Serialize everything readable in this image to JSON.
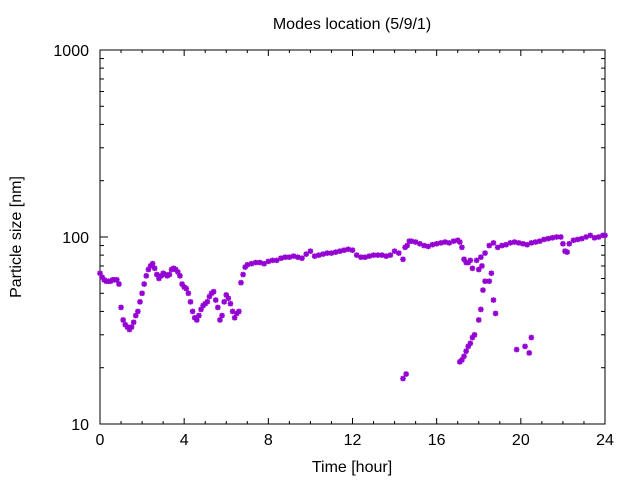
{
  "chart_data": {
    "type": "scatter",
    "title": "Modes location (5/9/1)",
    "xlabel": "Time [hour]",
    "ylabel": "Particle size [nm]",
    "xlim": [
      0,
      24
    ],
    "ylim": [
      10,
      1000
    ],
    "y_scale": "log",
    "x_ticks": [
      "0",
      "4",
      "8",
      "12",
      "16",
      "20",
      "24"
    ],
    "y_ticks": [
      "10",
      "100",
      "1000"
    ],
    "grid": false,
    "legend": "none",
    "marker_color": "#9400d3",
    "series": [
      {
        "points": [
          [
            0.0,
            64
          ],
          [
            0.1,
            61
          ],
          [
            0.2,
            59
          ],
          [
            0.3,
            58
          ],
          [
            0.4,
            58
          ],
          [
            0.5,
            58
          ],
          [
            0.6,
            59
          ],
          [
            0.7,
            59
          ],
          [
            0.8,
            59
          ],
          [
            0.9,
            56
          ],
          [
            1.0,
            42
          ],
          [
            1.1,
            36
          ],
          [
            1.2,
            34
          ],
          [
            1.3,
            33
          ],
          [
            1.4,
            32
          ],
          [
            1.5,
            33
          ],
          [
            1.6,
            35
          ],
          [
            1.7,
            38
          ],
          [
            1.8,
            40
          ],
          [
            1.9,
            45
          ],
          [
            2.0,
            50
          ],
          [
            2.1,
            56
          ],
          [
            2.2,
            62
          ],
          [
            2.3,
            67
          ],
          [
            2.4,
            70
          ],
          [
            2.5,
            72
          ],
          [
            2.6,
            68
          ],
          [
            2.7,
            63
          ],
          [
            2.8,
            60
          ],
          [
            2.9,
            62
          ],
          [
            3.0,
            64
          ],
          [
            3.1,
            63
          ],
          [
            3.2,
            62
          ],
          [
            3.3,
            63
          ],
          [
            3.4,
            67
          ],
          [
            3.5,
            68
          ],
          [
            3.6,
            67
          ],
          [
            3.7,
            65
          ],
          [
            3.8,
            62
          ],
          [
            3.9,
            56
          ],
          [
            4.0,
            54
          ],
          [
            4.1,
            53
          ],
          [
            4.2,
            50
          ],
          [
            4.3,
            45
          ],
          [
            4.4,
            40
          ],
          [
            4.5,
            37
          ],
          [
            4.6,
            36
          ],
          [
            4.7,
            38
          ],
          [
            4.8,
            41
          ],
          [
            4.9,
            43
          ],
          [
            5.0,
            44
          ],
          [
            5.1,
            45
          ],
          [
            5.2,
            48
          ],
          [
            5.3,
            50
          ],
          [
            5.4,
            51
          ],
          [
            5.5,
            46
          ],
          [
            5.6,
            42
          ],
          [
            5.7,
            36
          ],
          [
            5.8,
            38
          ],
          [
            5.9,
            45
          ],
          [
            6.0,
            49
          ],
          [
            6.1,
            47
          ],
          [
            6.2,
            44
          ],
          [
            6.3,
            40
          ],
          [
            6.4,
            37
          ],
          [
            6.5,
            39
          ],
          [
            6.6,
            40
          ],
          [
            6.7,
            57
          ],
          [
            6.8,
            63
          ],
          [
            6.9,
            69
          ],
          [
            7.0,
            71
          ],
          [
            7.2,
            72
          ],
          [
            7.4,
            73
          ],
          [
            7.6,
            73
          ],
          [
            7.8,
            72
          ],
          [
            8.0,
            74
          ],
          [
            8.2,
            75
          ],
          [
            8.4,
            75
          ],
          [
            8.6,
            77
          ],
          [
            8.8,
            78
          ],
          [
            9.0,
            78
          ],
          [
            9.2,
            79
          ],
          [
            9.4,
            78
          ],
          [
            9.6,
            77
          ],
          [
            9.8,
            81
          ],
          [
            10.0,
            84
          ],
          [
            10.2,
            79
          ],
          [
            10.4,
            80
          ],
          [
            10.6,
            81
          ],
          [
            10.8,
            82
          ],
          [
            11.0,
            82
          ],
          [
            11.2,
            83
          ],
          [
            11.4,
            84
          ],
          [
            11.6,
            85
          ],
          [
            11.8,
            86
          ],
          [
            12.0,
            85
          ],
          [
            12.2,
            80
          ],
          [
            12.4,
            78
          ],
          [
            12.6,
            78
          ],
          [
            12.8,
            79
          ],
          [
            13.0,
            80
          ],
          [
            13.2,
            80
          ],
          [
            13.4,
            80
          ],
          [
            13.6,
            79
          ],
          [
            13.8,
            80
          ],
          [
            14.0,
            84
          ],
          [
            14.2,
            82
          ],
          [
            14.4,
            76
          ],
          [
            14.5,
            88
          ],
          [
            14.6,
            90
          ],
          [
            14.7,
            95
          ],
          [
            14.8,
            95
          ],
          [
            15.0,
            94
          ],
          [
            15.2,
            92
          ],
          [
            15.4,
            90
          ],
          [
            15.6,
            89
          ],
          [
            15.8,
            91
          ],
          [
            16.0,
            92
          ],
          [
            16.2,
            93
          ],
          [
            16.4,
            94
          ],
          [
            16.6,
            93
          ],
          [
            16.8,
            95
          ],
          [
            17.0,
            96
          ],
          [
            17.1,
            94
          ],
          [
            17.2,
            88
          ],
          [
            17.3,
            76
          ],
          [
            17.4,
            73
          ],
          [
            17.5,
            73
          ],
          [
            17.6,
            75
          ],
          [
            17.7,
            68
          ],
          [
            17.9,
            75
          ],
          [
            18.1,
            78
          ],
          [
            18.3,
            82
          ],
          [
            18.5,
            90
          ],
          [
            18.7,
            93
          ],
          [
            18.9,
            88
          ],
          [
            19.1,
            90
          ],
          [
            19.3,
            91
          ],
          [
            19.5,
            93
          ],
          [
            19.7,
            94
          ],
          [
            19.9,
            93
          ],
          [
            20.1,
            92
          ],
          [
            20.3,
            91
          ],
          [
            20.5,
            93
          ],
          [
            20.7,
            94
          ],
          [
            20.9,
            95
          ],
          [
            21.1,
            97
          ],
          [
            21.3,
            98
          ],
          [
            21.5,
            99
          ],
          [
            21.7,
            100
          ],
          [
            21.9,
            100
          ],
          [
            22.0,
            92
          ],
          [
            22.1,
            84
          ],
          [
            22.2,
            83
          ],
          [
            22.3,
            92
          ],
          [
            22.5,
            96
          ],
          [
            22.7,
            97
          ],
          [
            22.9,
            98
          ],
          [
            23.1,
            100
          ],
          [
            23.3,
            102
          ],
          [
            23.5,
            99
          ],
          [
            23.7,
            100
          ],
          [
            23.9,
            102
          ],
          [
            24.0,
            102
          ],
          [
            14.4,
            17.5
          ],
          [
            14.55,
            18.5
          ],
          [
            17.1,
            21.5
          ],
          [
            17.2,
            22
          ],
          [
            17.3,
            23
          ],
          [
            17.4,
            24.5
          ],
          [
            17.5,
            26
          ],
          [
            17.6,
            27
          ],
          [
            17.7,
            29
          ],
          [
            17.8,
            30
          ],
          [
            18.0,
            36
          ],
          [
            18.1,
            41
          ],
          [
            18.2,
            52
          ],
          [
            18.3,
            58
          ],
          [
            18.5,
            58
          ],
          [
            18.6,
            64
          ],
          [
            18.7,
            46
          ],
          [
            18.8,
            39
          ],
          [
            19.8,
            25
          ],
          [
            20.2,
            26
          ],
          [
            20.4,
            24
          ],
          [
            20.5,
            29
          ],
          [
            18.0,
            67
          ],
          [
            18.15,
            70
          ]
        ]
      }
    ]
  }
}
